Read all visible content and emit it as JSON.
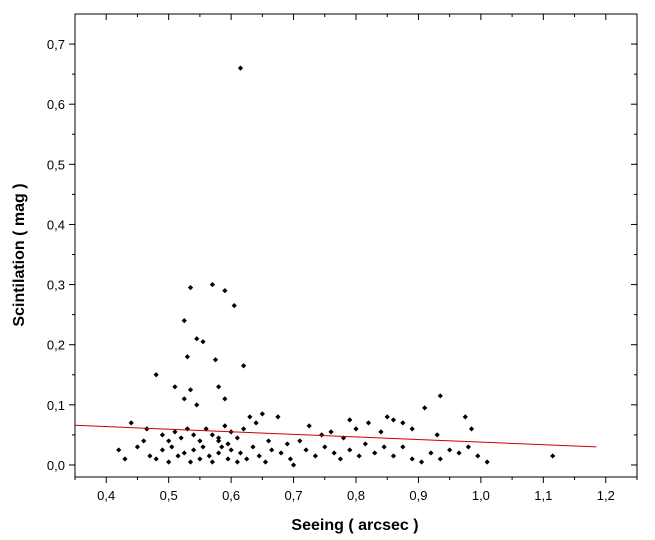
{
  "chart_data": {
    "type": "scatter",
    "xlabel": "Seeing ( arcsec )",
    "ylabel": "Scintilation ( mag )",
    "xlim": [
      0.35,
      1.25
    ],
    "ylim": [
      -0.02,
      0.75
    ],
    "x_ticks": [
      0.4,
      0.5,
      0.6,
      0.7,
      0.8,
      0.9,
      1.0,
      1.1,
      1.2
    ],
    "x_tick_labels": [
      "0,4",
      "0,5",
      "0,6",
      "0,7",
      "0,8",
      "0,9",
      "1,0",
      "1,1",
      "1,2"
    ],
    "y_ticks": [
      0.0,
      0.1,
      0.2,
      0.3,
      0.4,
      0.5,
      0.6,
      0.7
    ],
    "y_tick_labels": [
      "0,0",
      "0,1",
      "0,2",
      "0,3",
      "0,4",
      "0,5",
      "0,6",
      "0,7"
    ],
    "grid": false,
    "colors": {
      "points": "#000000",
      "fit_line": "#cc0000"
    },
    "series": [
      {
        "points": [
          [
            0.615,
            0.66
          ],
          [
            0.57,
            0.3
          ],
          [
            0.535,
            0.295
          ],
          [
            0.59,
            0.29
          ],
          [
            0.605,
            0.265
          ],
          [
            0.525,
            0.24
          ],
          [
            0.545,
            0.21
          ],
          [
            0.555,
            0.205
          ],
          [
            0.53,
            0.18
          ],
          [
            0.575,
            0.175
          ],
          [
            0.62,
            0.165
          ],
          [
            0.48,
            0.15
          ],
          [
            0.535,
            0.125
          ],
          [
            0.51,
            0.13
          ],
          [
            0.58,
            0.13
          ],
          [
            0.525,
            0.11
          ],
          [
            0.59,
            0.11
          ],
          [
            0.935,
            0.115
          ],
          [
            0.545,
            0.1
          ],
          [
            0.91,
            0.095
          ],
          [
            0.44,
            0.07
          ],
          [
            0.465,
            0.06
          ],
          [
            0.49,
            0.05
          ],
          [
            0.5,
            0.04
          ],
          [
            0.51,
            0.055
          ],
          [
            0.52,
            0.045
          ],
          [
            0.53,
            0.06
          ],
          [
            0.54,
            0.05
          ],
          [
            0.55,
            0.04
          ],
          [
            0.56,
            0.06
          ],
          [
            0.57,
            0.05
          ],
          [
            0.58,
            0.04
          ],
          [
            0.59,
            0.065
          ],
          [
            0.6,
            0.055
          ],
          [
            0.61,
            0.045
          ],
          [
            0.62,
            0.06
          ],
          [
            0.63,
            0.08
          ],
          [
            0.64,
            0.07
          ],
          [
            0.65,
            0.085
          ],
          [
            0.66,
            0.04
          ],
          [
            0.675,
            0.08
          ],
          [
            0.69,
            0.035
          ],
          [
            0.71,
            0.04
          ],
          [
            0.725,
            0.065
          ],
          [
            0.745,
            0.05
          ],
          [
            0.76,
            0.055
          ],
          [
            0.78,
            0.045
          ],
          [
            0.79,
            0.075
          ],
          [
            0.8,
            0.06
          ],
          [
            0.82,
            0.07
          ],
          [
            0.84,
            0.055
          ],
          [
            0.85,
            0.08
          ],
          [
            0.86,
            0.075
          ],
          [
            0.875,
            0.07
          ],
          [
            0.89,
            0.06
          ],
          [
            0.93,
            0.05
          ],
          [
            0.975,
            0.08
          ],
          [
            0.985,
            0.06
          ],
          [
            0.42,
            0.025
          ],
          [
            0.43,
            0.01
          ],
          [
            0.45,
            0.03
          ],
          [
            0.47,
            0.015
          ],
          [
            0.48,
            0.01
          ],
          [
            0.49,
            0.025
          ],
          [
            0.5,
            0.005
          ],
          [
            0.505,
            0.03
          ],
          [
            0.515,
            0.015
          ],
          [
            0.525,
            0.02
          ],
          [
            0.535,
            0.005
          ],
          [
            0.54,
            0.025
          ],
          [
            0.55,
            0.01
          ],
          [
            0.555,
            0.03
          ],
          [
            0.565,
            0.015
          ],
          [
            0.57,
            0.005
          ],
          [
            0.58,
            0.02
          ],
          [
            0.585,
            0.03
          ],
          [
            0.595,
            0.01
          ],
          [
            0.6,
            0.025
          ],
          [
            0.61,
            0.005
          ],
          [
            0.615,
            0.02
          ],
          [
            0.625,
            0.01
          ],
          [
            0.635,
            0.03
          ],
          [
            0.645,
            0.015
          ],
          [
            0.655,
            0.005
          ],
          [
            0.665,
            0.025
          ],
          [
            0.68,
            0.02
          ],
          [
            0.695,
            0.01
          ],
          [
            0.7,
            0.0
          ],
          [
            0.72,
            0.025
          ],
          [
            0.735,
            0.015
          ],
          [
            0.75,
            0.03
          ],
          [
            0.765,
            0.02
          ],
          [
            0.775,
            0.01
          ],
          [
            0.79,
            0.025
          ],
          [
            0.805,
            0.015
          ],
          [
            0.815,
            0.035
          ],
          [
            0.83,
            0.02
          ],
          [
            0.845,
            0.03
          ],
          [
            0.86,
            0.015
          ],
          [
            0.875,
            0.03
          ],
          [
            0.89,
            0.01
          ],
          [
            0.905,
            0.005
          ],
          [
            0.92,
            0.02
          ],
          [
            0.935,
            0.01
          ],
          [
            0.95,
            0.025
          ],
          [
            0.965,
            0.02
          ],
          [
            0.98,
            0.03
          ],
          [
            0.995,
            0.015
          ],
          [
            1.01,
            0.005
          ],
          [
            1.115,
            0.015
          ],
          [
            0.46,
            0.04
          ],
          [
            0.58,
            0.045
          ],
          [
            0.595,
            0.035
          ]
        ]
      }
    ],
    "fit_line": {
      "x": [
        0.35,
        1.185
      ],
      "y": [
        0.066,
        0.03
      ]
    }
  }
}
